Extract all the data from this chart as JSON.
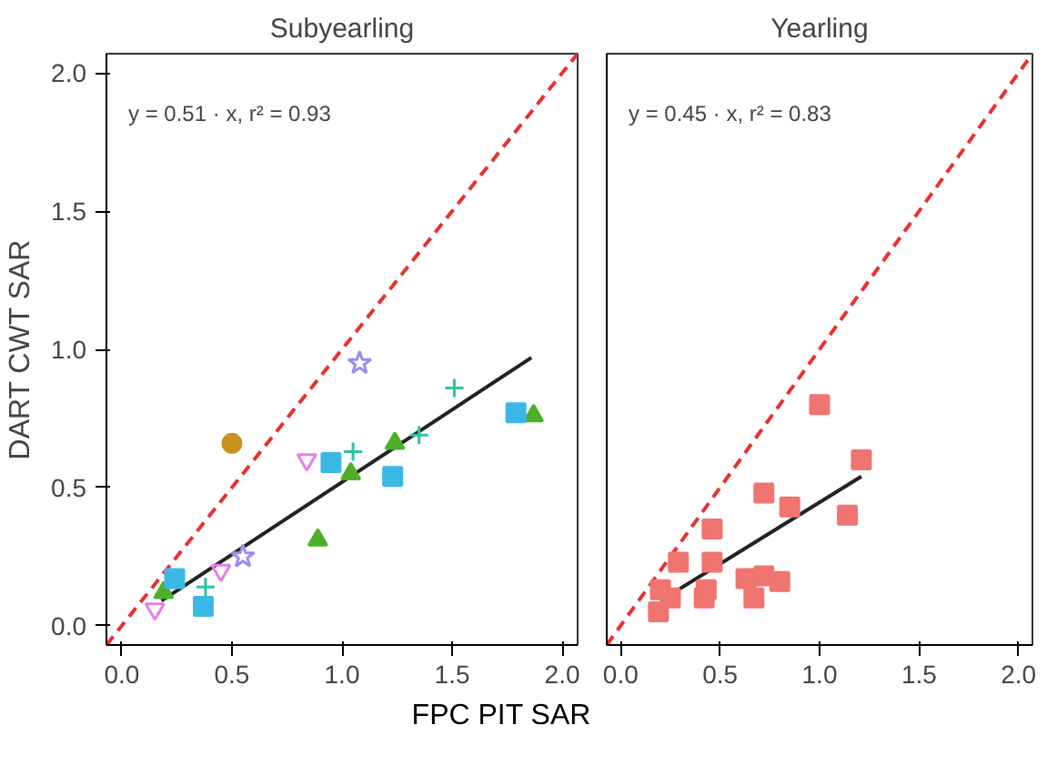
{
  "chart_data": [
    {
      "type": "scatter",
      "title": "Subyearling",
      "xlabel": "FPC PIT SAR",
      "ylabel": "DART CWT SAR",
      "xlim": [
        -0.07,
        2.07
      ],
      "ylim": [
        -0.07,
        2.07
      ],
      "xticks": [
        {
          "value": 0,
          "label": "0.0"
        },
        {
          "value": 0.5,
          "label": "0.5"
        },
        {
          "value": 1,
          "label": "1.0"
        },
        {
          "value": 1.5,
          "label": "1.5"
        },
        {
          "value": 2,
          "label": "2.0"
        }
      ],
      "yticks": [
        {
          "value": 0,
          "label": "0.0"
        },
        {
          "value": 0.5,
          "label": "0.5"
        },
        {
          "value": 1,
          "label": "1.0"
        },
        {
          "value": 1.5,
          "label": "1.5"
        },
        {
          "value": 2,
          "label": "2.0"
        }
      ],
      "grid": false,
      "annotations": [
        "y = 0.51 · x,  r² = 0.93"
      ],
      "series": [
        {
          "type": "line",
          "color": "#e8312f",
          "line_style": "dashed",
          "marker": "none",
          "x": [
            -0.07,
            2.07
          ],
          "values": [
            -0.07,
            2.07
          ]
        },
        {
          "type": "line",
          "color": "#222222",
          "line_style": "solid",
          "marker": "none",
          "x": [
            0.18,
            1.86
          ],
          "values": [
            0.09,
            0.97
          ]
        },
        {
          "color": "#4daf2a",
          "marker": "triangle",
          "x": [
            1.87,
            1.24,
            1.04,
            0.89,
            0.19
          ],
          "values": [
            0.76,
            0.66,
            0.55,
            0.31,
            0.12
          ]
        },
        {
          "color": "#3cb8e6",
          "marker": "square",
          "x": [
            1.79,
            0.95,
            1.23,
            0.24,
            0.37
          ],
          "values": [
            0.77,
            0.59,
            0.54,
            0.17,
            0.07
          ]
        },
        {
          "color": "#2ec4a0",
          "marker": "cross",
          "x": [
            1.51,
            1.05,
            1.35,
            0.38
          ],
          "values": [
            0.86,
            0.63,
            0.69,
            0.14
          ]
        },
        {
          "color": "#9b8cf0",
          "marker": "star",
          "x": [
            1.08,
            0.55
          ],
          "values": [
            0.95,
            0.25
          ]
        },
        {
          "color": "#e87de8",
          "x": [
            0.84,
            0.45,
            0.15
          ],
          "values": [
            0.6,
            0.2,
            0.06
          ]
        },
        {
          "color": "#c8941e",
          "marker": "circle",
          "x": [
            0.5
          ],
          "values": [
            0.66
          ]
        }
      ]
    },
    {
      "type": "scatter",
      "title": "Yearling",
      "xlim": [
        -0.07,
        2.07
      ],
      "ylim": [
        -0.07,
        2.07
      ],
      "xticks": [
        {
          "value": 0,
          "label": "0.0"
        },
        {
          "value": 0.5,
          "label": "0.5"
        },
        {
          "value": 1,
          "label": "1.0"
        },
        {
          "value": 1.5,
          "label": "1.5"
        },
        {
          "value": 2,
          "label": "2.0"
        }
      ],
      "tick_labels": "x",
      "grid": false,
      "annotations": [
        "y = 0.45 · x,  r² = 0.83"
      ],
      "series": [
        {
          "type": "line",
          "color": "#e8312f",
          "line_style": "dashed",
          "marker": "none",
          "x": [
            -0.07,
            2.07
          ],
          "values": [
            -0.07,
            2.07
          ]
        },
        {
          "type": "line",
          "color": "#222222",
          "line_style": "solid",
          "marker": "none",
          "x": [
            0.2,
            1.21
          ],
          "values": [
            0.09,
            0.54
          ]
        },
        {
          "color": "#f07470",
          "marker": "square",
          "x": [
            1.0,
            1.21,
            0.72,
            0.85,
            1.14,
            0.46,
            0.29,
            0.46,
            0.2,
            0.25,
            0.43,
            0.42,
            0.63,
            0.72,
            0.8,
            0.67,
            0.19
          ],
          "values": [
            0.8,
            0.6,
            0.48,
            0.43,
            0.4,
            0.35,
            0.23,
            0.23,
            0.13,
            0.1,
            0.13,
            0.1,
            0.17,
            0.18,
            0.16,
            0.1,
            0.05
          ]
        }
      ]
    }
  ]
}
